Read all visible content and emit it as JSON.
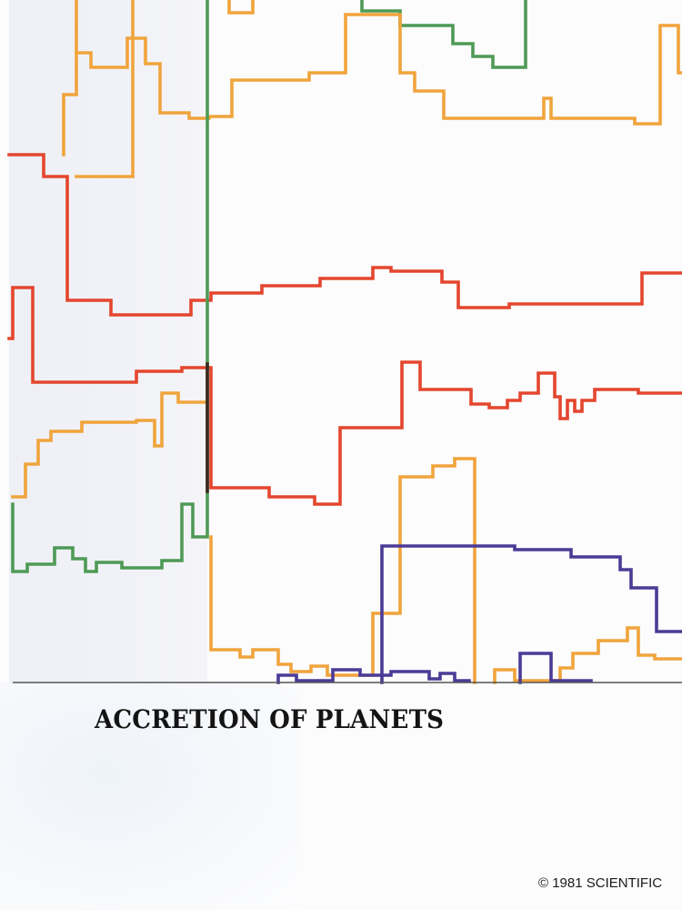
{
  "page": {
    "title": "ACCRETION OF PLANETS",
    "copyright": "© 1981 SCIENTIFIC"
  },
  "colors": {
    "orange": "#f0a43c",
    "red": "#e4462e",
    "green": "#4e9a56",
    "purple": "#4b3b96",
    "dark": "#3a2a1e",
    "baseline": "#555555"
  }
}
